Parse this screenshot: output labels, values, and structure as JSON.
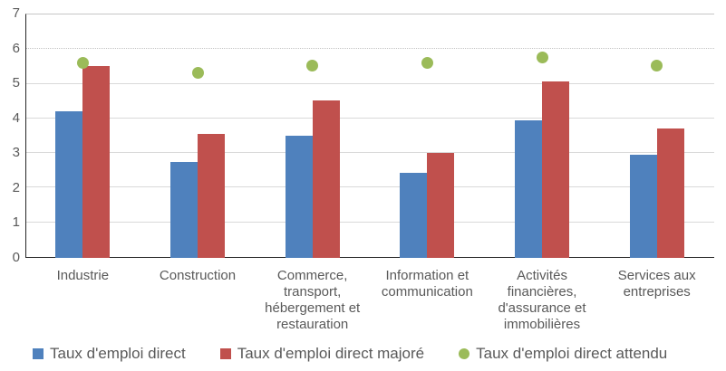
{
  "chart_data": {
    "type": "bar",
    "title": "",
    "xlabel": "",
    "ylabel": "",
    "ylim": [
      0,
      7
    ],
    "yticks": [
      "0",
      "1",
      "2",
      "3",
      "4",
      "5",
      "6",
      "7"
    ],
    "grid": true,
    "legend_position": "bottom",
    "categories": [
      "Industrie",
      "Construction",
      "Commerce, transport, hébergement et restauration",
      "Information et communication",
      "Activités financières, d'assurance et immobilières",
      "Services aux entreprises"
    ],
    "series": [
      {
        "name": "Taux d'emploi direct",
        "mark": "bar",
        "color": "#4F81BD",
        "values": [
          4.2,
          2.75,
          3.5,
          2.45,
          3.95,
          2.95
        ]
      },
      {
        "name": "Taux d'emploi direct majoré",
        "mark": "bar",
        "color": "#C0504D",
        "values": [
          5.5,
          3.55,
          4.5,
          3.0,
          5.05,
          3.7
        ]
      },
      {
        "name": "Taux d'emploi direct attendu",
        "mark": "point",
        "color": "#9BBB59",
        "values": [
          5.6,
          5.3,
          5.5,
          5.6,
          5.75,
          5.5
        ]
      }
    ]
  },
  "colors": {
    "axis_line": "#262626",
    "gridline": "#D9D9D9",
    "tick_label": "#595959",
    "category_label": "#595959",
    "legend_text": "#595959",
    "background": "#FFFFFF"
  }
}
